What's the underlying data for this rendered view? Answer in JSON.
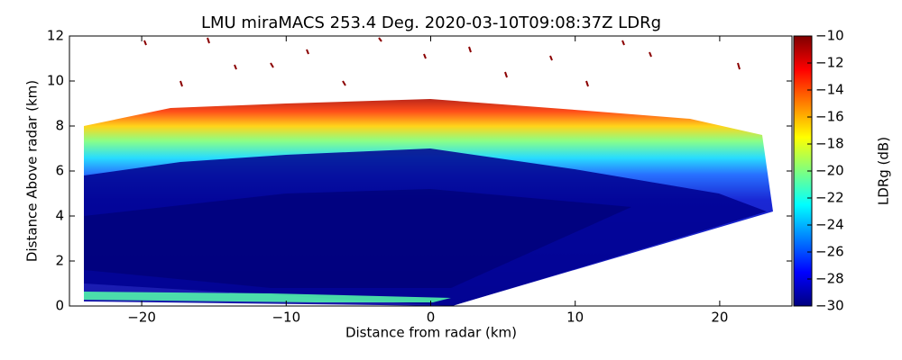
{
  "chart_data": {
    "type": "heatmap",
    "title": "LMU miraMACS 253.4 Deg. 2020-03-10T09:08:37Z  LDRg",
    "xlabel": "Distance from radar (km)",
    "ylabel": "Distance Above radar  (km)",
    "xlim": [
      -25,
      25
    ],
    "xticks": [
      {
        "value": -20,
        "label": "−20"
      },
      {
        "value": -10,
        "label": "−10"
      },
      0,
      10,
      20
    ],
    "ylim": [
      0,
      12
    ],
    "yticks": [
      0,
      2,
      4,
      6,
      8,
      10,
      12
    ],
    "colorbar": {
      "label": "LDRg (dB)",
      "lim": [
        -30,
        -10
      ],
      "ticks": [
        {
          "value": -30,
          "label": "−30"
        },
        {
          "value": -28,
          "label": "−28"
        },
        {
          "value": -26,
          "label": "−26"
        },
        {
          "value": -24,
          "label": "−24"
        },
        {
          "value": -22,
          "label": "−22"
        },
        {
          "value": -20,
          "label": "−20"
        },
        {
          "value": -18,
          "label": "−18"
        },
        {
          "value": -16,
          "label": "−16"
        },
        {
          "value": -14,
          "label": "−14"
        },
        {
          "value": -12,
          "label": "−12"
        },
        {
          "value": -10,
          "label": "−10"
        }
      ]
    }
  }
}
